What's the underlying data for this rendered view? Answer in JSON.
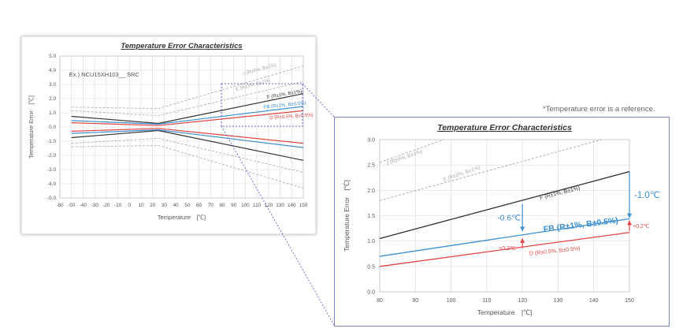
{
  "note": "*Temperature error is a reference.",
  "chart_data": [
    {
      "type": "line",
      "title": "Temperature Error Characteristics",
      "xlabel": "Temperature　[℃]",
      "ylabel": "Temperature Error　[℃]",
      "xlim": [
        -60,
        150
      ],
      "ylim": [
        -5.0,
        5.0
      ],
      "xticks": [
        -60,
        -50,
        -40,
        -30,
        -20,
        -10,
        0,
        10,
        20,
        30,
        40,
        50,
        60,
        70,
        80,
        90,
        100,
        110,
        120,
        130,
        140,
        150
      ],
      "yticks": [
        -5.0,
        -4.0,
        -3.0,
        -2.0,
        -1.0,
        0.0,
        1.0,
        2.0,
        3.0,
        4.0,
        5.0
      ],
      "grid": true,
      "annotation": "Ex.) NCU15XH103__ SRC",
      "series": [
        {
          "name": "J (R±5%, B±1%)",
          "color": "#a8a8a8",
          "dash": true,
          "x": [
            -50,
            25,
            150
          ],
          "upper": [
            1.4,
            1.3,
            4.3
          ],
          "lower": [
            -1.4,
            -1.3,
            -4.3
          ]
        },
        {
          "name": "E (R±3%, B±1%)",
          "color": "#a8a8a8",
          "dash": true,
          "x": [
            -50,
            25,
            150
          ],
          "upper": [
            1.15,
            0.8,
            3.2
          ],
          "lower": [
            -1.15,
            -0.8,
            -3.2
          ]
        },
        {
          "name": "F (R±1%, B±1%)",
          "color": "#333333",
          "dash": false,
          "x": [
            -50,
            25,
            150
          ],
          "upper": [
            0.75,
            0.25,
            2.35
          ],
          "lower": [
            -0.75,
            -0.25,
            -2.35
          ]
        },
        {
          "name": "FB (R±1%, B±0.5%)",
          "color": "#3b8ed0",
          "dash": false,
          "x": [
            -50,
            25,
            150
          ],
          "upper": [
            0.45,
            0.2,
            1.45
          ],
          "lower": [
            -0.45,
            -0.2,
            -1.45
          ]
        },
        {
          "name": "D (R±0.5%, B±0.5%)",
          "color": "#e04545",
          "dash": false,
          "x": [
            -50,
            25,
            150
          ],
          "upper": [
            0.3,
            0.1,
            1.15
          ],
          "lower": [
            -0.3,
            -0.1,
            -1.15
          ]
        }
      ]
    },
    {
      "type": "line",
      "title": "Temperature Error Characteristics",
      "xlabel": "Temperature　[℃]",
      "ylabel": "Temperature Error　[℃]",
      "xlim": [
        80,
        150
      ],
      "ylim": [
        0.0,
        3.0
      ],
      "xticks": [
        80,
        90,
        100,
        110,
        120,
        130,
        140,
        150
      ],
      "yticks": [
        0.0,
        0.5,
        1.0,
        1.5,
        2.0,
        2.5,
        3.0
      ],
      "grid": true,
      "series": [
        {
          "name": "J (R±5%, B±1%)",
          "color": "#a8a8a8",
          "dash": true,
          "x": [
            80,
            150
          ],
          "y": [
            2.55,
            4.3
          ]
        },
        {
          "name": "E (R±3%, B±1%)",
          "color": "#a8a8a8",
          "dash": true,
          "x": [
            80,
            150
          ],
          "y": [
            1.8,
            3.15
          ]
        },
        {
          "name": "F (R±1%, B±1%)",
          "color": "#333333",
          "dash": false,
          "x": [
            80,
            150
          ],
          "y": [
            1.05,
            2.37
          ]
        },
        {
          "name": "FB (R±1%, B±0.5%)",
          "color": "#3b8ed0",
          "dash": false,
          "x": [
            80,
            150
          ],
          "y": [
            0.7,
            1.44
          ]
        },
        {
          "name": "D (R±0.5%, B±0.5%)",
          "color": "#e04545",
          "dash": false,
          "x": [
            80,
            150
          ],
          "y": [
            0.5,
            1.17
          ]
        }
      ],
      "annotations": [
        {
          "text": "-0.6℃",
          "x": 120,
          "from": 1.73,
          "to": 1.2,
          "color": "#3b8ed0"
        },
        {
          "text": "+0.2℃",
          "x": 120,
          "from": 0.86,
          "to": 1.05,
          "color": "#e04545"
        },
        {
          "text": "-1.0℃",
          "x": 150,
          "from": 2.37,
          "to": 1.46,
          "color": "#3b8ed0"
        },
        {
          "text": "+0.2℃",
          "x": 150,
          "from": 1.2,
          "to": 1.4,
          "color": "#e04545"
        },
        {
          "text": "FB (R±1%, B±0.5%)",
          "color": "#3b8ed0"
        }
      ]
    }
  ]
}
